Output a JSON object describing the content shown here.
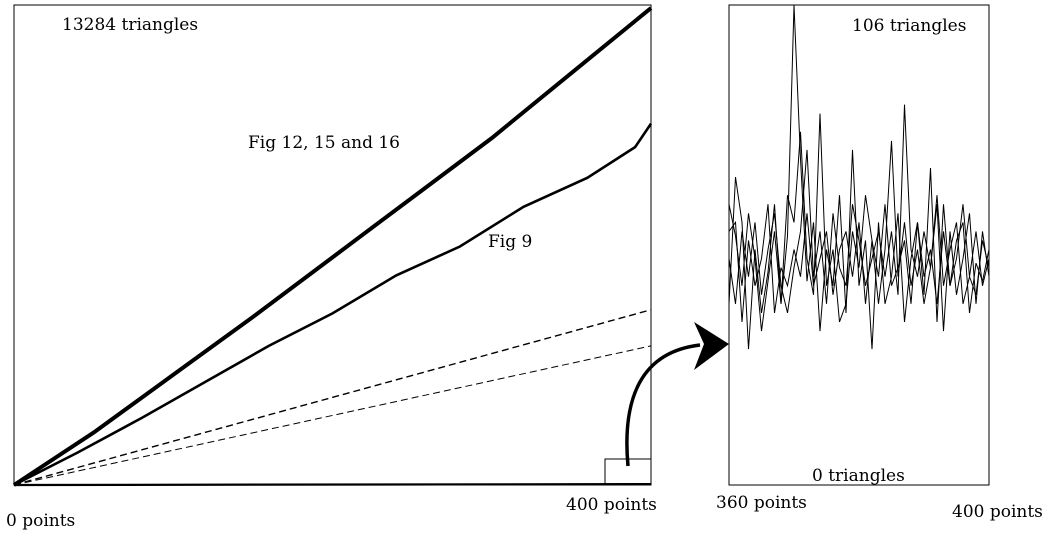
{
  "chart_data": [
    {
      "type": "line",
      "title": "",
      "xlabel": "",
      "ylabel": "",
      "xlim": [
        0,
        400
      ],
      "ylim": [
        0,
        13284
      ],
      "x_tick_labels": [
        "0 points",
        "400 points"
      ],
      "annotations": {
        "top_value": "13284 triangles",
        "upper_curve": "Fig 12, 15 and 16",
        "middle_curve": "Fig 9"
      },
      "series": [
        {
          "style": "thick-solid",
          "x": [
            0,
            50,
            100,
            150,
            200,
            250,
            300,
            350,
            400
          ],
          "y": [
            0,
            1450,
            3050,
            4650,
            6300,
            7950,
            9600,
            11400,
            13200
          ]
        },
        {
          "style": "solid",
          "x": [
            0,
            40,
            80,
            120,
            160,
            200,
            240,
            280,
            320,
            360,
            390,
            400
          ],
          "y": [
            0,
            900,
            1850,
            2850,
            3850,
            4750,
            5800,
            6600,
            7700,
            8500,
            9350,
            10000
          ]
        },
        {
          "style": "dashed",
          "x": [
            0,
            400
          ],
          "y": [
            0,
            4850
          ]
        },
        {
          "style": "dashed-thin",
          "x": [
            0,
            400
          ],
          "y": [
            0,
            3850
          ]
        },
        {
          "style": "near-zero",
          "x": [
            0,
            400
          ],
          "y": [
            0,
            25
          ]
        }
      ],
      "grid": false
    },
    {
      "type": "line",
      "title": "",
      "xlim": [
        360,
        400
      ],
      "ylim": [
        0,
        106
      ],
      "x_tick_labels": [
        "360 points",
        "400 points"
      ],
      "annotations": {
        "top_value": "106 triangles",
        "bottom_value": "0 triangles"
      },
      "series": [
        {
          "x": [
            360,
            361,
            362,
            363,
            364,
            365,
            366,
            367,
            368,
            369,
            370,
            371,
            372,
            373,
            374,
            375,
            376,
            377,
            378,
            379,
            380,
            381,
            382,
            383,
            384,
            385,
            386,
            387,
            388,
            389,
            390,
            391,
            392,
            393,
            394,
            395,
            396,
            397,
            398,
            399,
            400
          ],
          "y": [
            40,
            68,
            58,
            30,
            52,
            38,
            47,
            62,
            40,
            55,
            106,
            72,
            45,
            58,
            34,
            52,
            44,
            64,
            38,
            74,
            44,
            54,
            30,
            58,
            40,
            46,
            60,
            36,
            50,
            58,
            42,
            70,
            36,
            62,
            44,
            54,
            58,
            38,
            49,
            45,
            52
          ]
        },
        {
          "x": [
            360,
            361,
            362,
            363,
            364,
            365,
            366,
            367,
            368,
            369,
            370,
            371,
            372,
            373,
            374,
            375,
            376,
            377,
            378,
            379,
            380,
            381,
            382,
            383,
            384,
            385,
            386,
            387,
            388,
            389,
            390,
            391,
            392,
            393,
            394,
            395,
            396,
            397,
            398,
            399,
            400
          ],
          "y": [
            62,
            55,
            44,
            60,
            50,
            34,
            45,
            56,
            40,
            64,
            58,
            78,
            50,
            42,
            82,
            44,
            52,
            36,
            40,
            56,
            48,
            64,
            54,
            40,
            52,
            76,
            46,
            58,
            44,
            52,
            40,
            48,
            62,
            34,
            56,
            42,
            50,
            60,
            40,
            56,
            46
          ]
        },
        {
          "x": [
            360,
            361,
            362,
            363,
            364,
            365,
            366,
            367,
            368,
            369,
            370,
            371,
            372,
            373,
            374,
            375,
            376,
            377,
            378,
            379,
            380,
            381,
            382,
            383,
            384,
            385,
            386,
            387,
            388,
            389,
            390,
            391,
            392,
            393,
            394,
            395,
            396,
            397,
            398,
            399,
            400
          ],
          "y": [
            50,
            40,
            56,
            46,
            58,
            42,
            52,
            60,
            44,
            38,
            48,
            56,
            74,
            46,
            56,
            40,
            60,
            48,
            44,
            62,
            54,
            44,
            50,
            56,
            46,
            56,
            42,
            84,
            52,
            46,
            56,
            48,
            64,
            44,
            52,
            58,
            40,
            46,
            56,
            44,
            50
          ]
        },
        {
          "x": [
            360,
            361,
            362,
            363,
            364,
            365,
            366,
            367,
            368,
            369,
            370,
            371,
            372,
            373,
            374,
            375,
            376,
            377,
            378,
            379,
            380,
            381,
            382,
            383,
            384,
            385,
            386,
            387,
            388,
            389,
            390,
            391,
            392,
            393,
            394,
            395,
            396,
            397,
            398,
            399,
            400
          ],
          "y": [
            56,
            58,
            36,
            54,
            44,
            50,
            62,
            38,
            48,
            44,
            52,
            46,
            60,
            44,
            50,
            56,
            42,
            52,
            56,
            46,
            58,
            40,
            54,
            46,
            62,
            44,
            48,
            54,
            40,
            58,
            46,
            52,
            40,
            56,
            44,
            50,
            62,
            46,
            42,
            54,
            48
          ]
        }
      ],
      "grid": false
    }
  ]
}
